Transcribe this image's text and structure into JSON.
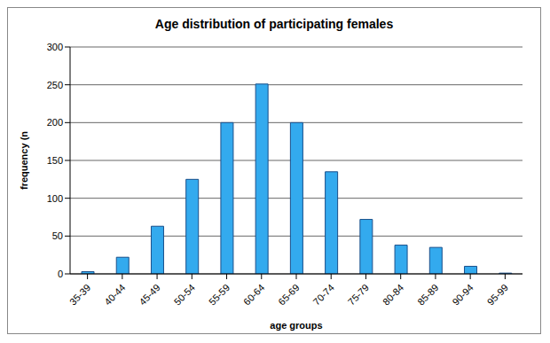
{
  "chart_data": {
    "type": "bar",
    "title": "Age distribution of participating females",
    "x_label": "age groups",
    "y_label": "frequency (n",
    "categories": [
      "35-39",
      "40-44",
      "45-49",
      "50-54",
      "55-59",
      "60-64",
      "65-69",
      "70-74",
      "75-79",
      "80-84",
      "85-89",
      "90-94",
      "95-99"
    ],
    "values": [
      3,
      22,
      63,
      125,
      200,
      251,
      200,
      135,
      72,
      38,
      35,
      10,
      1
    ],
    "color": "#33aaee",
    "ylim": [
      0,
      300
    ],
    "yticks": [
      0,
      50,
      100,
      150,
      200,
      250,
      300
    ],
    "grid": true
  }
}
